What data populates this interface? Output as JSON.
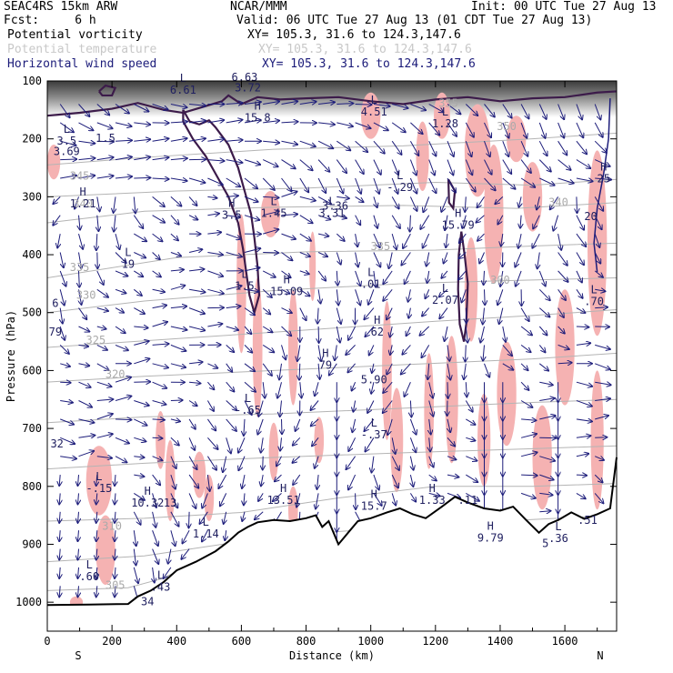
{
  "header": {
    "model": "SEAC4RS 15km ARW",
    "center": "NCAR/MMM",
    "init": "Init: 00 UTC Tue 27 Aug 13",
    "fcst": "Fcst:     6 h",
    "valid": "Valid: 06 UTC Tue 27 Aug 13 (01 CDT Tue 27 Aug 13)",
    "fields": [
      {
        "name": "Potential vorticity",
        "xy": "XY= 105.3, 31.6 to 124.3,147.6",
        "color": "#000000"
      },
      {
        "name": "Potential temperature",
        "xy": "XY= 105.3, 31.6 to 124.3,147.6",
        "color": "#c8c8c8"
      },
      {
        "name": "Horizontal wind speed",
        "xy": "XY= 105.3, 31.6 to 124.3,147.6",
        "color": "#1c1c7a"
      }
    ]
  },
  "chart_data": {
    "type": "cross-section",
    "xlabel": "Distance (km)",
    "ylabel": "Pressure (hPa)",
    "xlim": [
      0,
      1760
    ],
    "ylim": [
      1050,
      100
    ],
    "x_ticks": [
      "0",
      "200",
      "400",
      "600",
      "800",
      "1000",
      "1200",
      "1400",
      "1600"
    ],
    "y_ticks": [
      "100",
      "200",
      "300",
      "400",
      "500",
      "600",
      "700",
      "800",
      "900",
      "1000"
    ],
    "end_labels": {
      "left": "S",
      "right": "N"
    },
    "colors": {
      "pv_line": "#3c1b4a",
      "theta_line": "#b4b4b4",
      "wind": "#1c1c7a",
      "shade": "#f5b2b2",
      "terrain": "#000000"
    },
    "theta_labels": [
      {
        "value": "355",
        "x": 1240,
        "p": 145
      },
      {
        "value": "350",
        "x": 1420,
        "p": 185
      },
      {
        "value": "345",
        "x": 100,
        "p": 270
      },
      {
        "value": "340",
        "x": 110,
        "p": 318
      },
      {
        "value": "340",
        "x": 1580,
        "p": 316
      },
      {
        "value": "335",
        "x": 100,
        "p": 428
      },
      {
        "value": "335",
        "x": 1030,
        "p": 392
      },
      {
        "value": "330",
        "x": 120,
        "p": 476
      },
      {
        "value": "325",
        "x": 150,
        "p": 554
      },
      {
        "value": "320",
        "x": 210,
        "p": 613
      },
      {
        "value": "310",
        "x": 200,
        "p": 875
      },
      {
        "value": "305",
        "x": 210,
        "p": 977
      },
      {
        "value": "300",
        "x": 1400,
        "p": 450
      }
    ],
    "extrema": [
      {
        "kind": "L",
        "value": "6.61",
        "x": 420,
        "p": 122
      },
      {
        "kind": "",
        "value": "6.63",
        "x": 610,
        "p": 100
      },
      {
        "kind": "",
        "value": "3.72",
        "x": 620,
        "p": 118
      },
      {
        "kind": "H",
        "value": "15.8",
        "x": 650,
        "p": 170
      },
      {
        "kind": "L",
        "value": "4.51",
        "x": 1010,
        "p": 160
      },
      {
        "kind": "L",
        "value": "1.28",
        "x": 1230,
        "p": 180
      },
      {
        "kind": "L",
        "value": "3.5",
        "x": 60,
        "p": 210
      },
      {
        "kind": "",
        "value": "3.69",
        "x": 60,
        "p": 228
      },
      {
        "kind": "",
        "value": "1.5",
        "x": 180,
        "p": 205
      },
      {
        "kind": "H",
        "value": "1.21",
        "x": 110,
        "p": 318
      },
      {
        "kind": "L",
        "value": "-.29",
        "x": 1090,
        "p": 290
      },
      {
        "kind": "H",
        "value": "3.5",
        "x": 570,
        "p": 338
      },
      {
        "kind": "L",
        "value": "1.45",
        "x": 700,
        "p": 335
      },
      {
        "kind": "L",
        "value": "3.31",
        "x": 880,
        "p": 335
      },
      {
        "kind": "",
        "value": "3.36",
        "x": 890,
        "p": 322
      },
      {
        "kind": "H",
        "value": "15.79",
        "x": 1270,
        "p": 355
      },
      {
        "kind": "",
        "value": "20",
        "x": 1680,
        "p": 340
      },
      {
        "kind": "H",
        "value": "25",
        "x": 1720,
        "p": 275
      },
      {
        "kind": "L",
        "value": "19",
        "x": 250,
        "p": 423
      },
      {
        "kind": "L",
        "value": "1.5",
        "x": 610,
        "p": 460
      },
      {
        "kind": "H",
        "value": "15.09",
        "x": 740,
        "p": 470
      },
      {
        "kind": "L",
        "value": ".01",
        "x": 1000,
        "p": 457
      },
      {
        "kind": "L",
        "value": "2.07",
        "x": 1230,
        "p": 485
      },
      {
        "kind": "L",
        "value": ".70",
        "x": 1690,
        "p": 487
      },
      {
        "kind": "",
        "value": "6",
        "x": 25,
        "p": 490
      },
      {
        "kind": "",
        "value": "79",
        "x": 25,
        "p": 540
      },
      {
        "kind": "H",
        "value": "62",
        "x": 1020,
        "p": 540
      },
      {
        "kind": "H",
        "value": "79",
        "x": 860,
        "p": 597
      },
      {
        "kind": "",
        "value": "5.90",
        "x": 1010,
        "p": 622
      },
      {
        "kind": "L",
        "value": "-.65",
        "x": 620,
        "p": 675
      },
      {
        "kind": "L",
        "value": "-.37",
        "x": 1010,
        "p": 717
      },
      {
        "kind": "",
        "value": "32",
        "x": 30,
        "p": 733
      },
      {
        "kind": "L",
        "value": "-.15",
        "x": 160,
        "p": 810
      },
      {
        "kind": "H",
        "value": "10.32",
        "x": 310,
        "p": 835
      },
      {
        "kind": "",
        "value": "13",
        "x": 380,
        "p": 835
      },
      {
        "kind": "H",
        "value": "13.51",
        "x": 730,
        "p": 830
      },
      {
        "kind": "H",
        "value": "15.7",
        "x": 1010,
        "p": 840
      },
      {
        "kind": "H",
        "value": "1.33",
        "x": 1190,
        "p": 830
      },
      {
        "kind": "",
        "value": ".11",
        "x": 1300,
        "p": 830
      },
      {
        "kind": "L",
        "value": "1.14",
        "x": 490,
        "p": 888
      },
      {
        "kind": "H",
        "value": "9.79",
        "x": 1370,
        "p": 895
      },
      {
        "kind": "L",
        "value": ".36",
        "x": 1580,
        "p": 896
      },
      {
        "kind": "",
        "value": ".51",
        "x": 1670,
        "p": 865
      },
      {
        "kind": "L",
        "value": ".60",
        "x": 130,
        "p": 962
      },
      {
        "kind": "L",
        "value": ".43",
        "x": 350,
        "p": 980
      },
      {
        "kind": "",
        "value": "34",
        "x": 310,
        "p": 1005
      },
      {
        "kind": "",
        "value": "5",
        "x": 1540,
        "p": 905
      }
    ]
  }
}
